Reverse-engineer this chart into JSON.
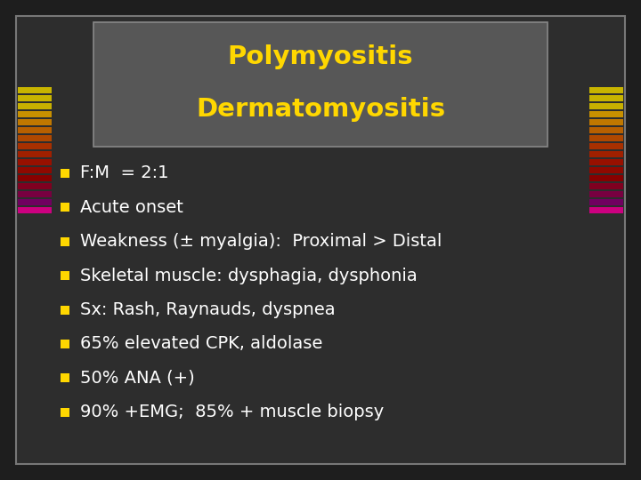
{
  "title_line1": "Polymyositis",
  "title_line2": "Dermatomyositis",
  "title_color": "#FFD700",
  "title_box_facecolor": "#575757",
  "title_box_edgecolor": "#888888",
  "background_color": "#1e1e1e",
  "slide_bg_color": "#2d2d2d",
  "slide_edge_color": "#777777",
  "bullet_color": "#FFD700",
  "text_color": "#FFFFFF",
  "bullet_items": [
    "F:M  = 2:1",
    "Acute onset",
    "Weakness (± myalgia):  Proximal > Distal",
    "Skeletal muscle: dysphagia, dysphonia",
    "Sx: Rash, Raynauds, dyspnea",
    "65% elevated CPK, aldolase",
    "50% ANA (+)",
    "90% +EMG;  85% + muscle biopsy"
  ],
  "stripe_colors": [
    "#C8B400",
    "#C8B400",
    "#C8B000",
    "#C89000",
    "#C07800",
    "#B86000",
    "#B04800",
    "#A83000",
    "#A02000",
    "#981000",
    "#900800",
    "#880000",
    "#800020",
    "#780040",
    "#700060",
    "#CC0080"
  ],
  "title_fontsize": 21,
  "bullet_fontsize": 14
}
